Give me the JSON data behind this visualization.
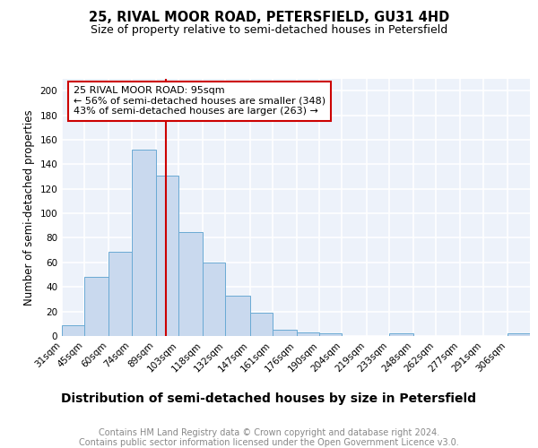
{
  "title1": "25, RIVAL MOOR ROAD, PETERSFIELD, GU31 4HD",
  "title2": "Size of property relative to semi-detached houses in Petersfield",
  "xlabel": "Distribution of semi-detached houses by size in Petersfield",
  "ylabel": "Number of semi-detached properties",
  "footnote_line1": "Contains HM Land Registry data © Crown copyright and database right 2024.",
  "footnote_line2": "Contains public sector information licensed under the Open Government Licence v3.0.",
  "bar_edges": [
    31,
    45,
    60,
    74,
    89,
    103,
    118,
    132,
    147,
    161,
    176,
    190,
    204,
    219,
    233,
    248,
    262,
    277,
    291,
    306,
    320
  ],
  "bar_heights": [
    9,
    48,
    69,
    152,
    131,
    85,
    60,
    33,
    19,
    5,
    3,
    2,
    0,
    0,
    2,
    0,
    0,
    0,
    0,
    2
  ],
  "bar_color": "#c9d9ee",
  "bar_edgecolor": "#6aaad4",
  "property_size": 95,
  "vline_color": "#cc0000",
  "annotation_line1": "25 RIVAL MOOR ROAD: 95sqm",
  "annotation_line2": "← 56% of semi-detached houses are smaller (348)",
  "annotation_line3": "43% of semi-detached houses are larger (263) →",
  "annotation_box_edgecolor": "#cc0000",
  "ylim": [
    0,
    210
  ],
  "yticks": [
    0,
    20,
    40,
    60,
    80,
    100,
    120,
    140,
    160,
    180,
    200
  ],
  "bg_color": "#edf2fa",
  "grid_color": "#ffffff",
  "title1_fontsize": 10.5,
  "title2_fontsize": 9,
  "xlabel_fontsize": 10,
  "ylabel_fontsize": 8.5,
  "tick_fontsize": 7.5,
  "annot_fontsize": 8,
  "footnote_fontsize": 7,
  "footnote_color": "#888888"
}
